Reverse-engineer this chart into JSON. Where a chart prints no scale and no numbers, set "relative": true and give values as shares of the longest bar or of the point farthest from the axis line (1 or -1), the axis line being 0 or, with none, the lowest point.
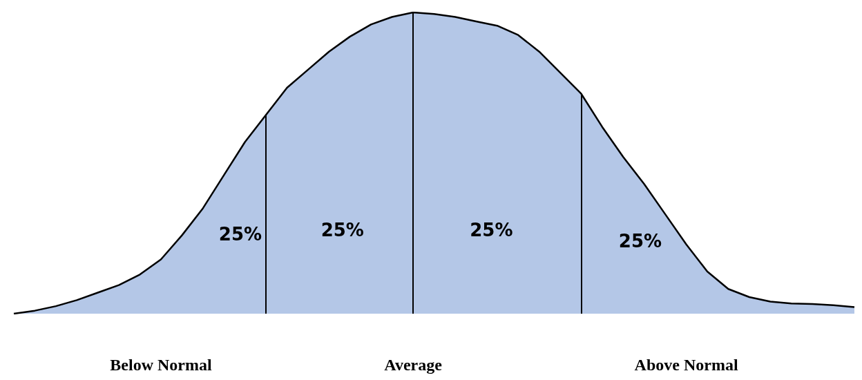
{
  "chart_data": {
    "type": "area",
    "relative": true,
    "categories": [
      null,
      null,
      null,
      null,
      null,
      null,
      null,
      "Below Normal",
      null,
      null,
      null,
      null,
      null,
      null,
      null,
      null,
      null,
      null,
      null,
      "Average",
      null,
      null,
      null,
      null,
      null,
      null,
      null,
      null,
      null,
      null,
      null,
      null,
      "Above Normal",
      null,
      null,
      null,
      null,
      null,
      null,
      null,
      null
    ],
    "series": [
      {
        "color": "#b4c7e7",
        "values": [
          0,
          0.01,
          0.025,
          0.045,
          0.07,
          0.095,
          0.13,
          0.18,
          0.26,
          0.35,
          0.46,
          0.57,
          0.66,
          0.75,
          0.81,
          0.87,
          0.92,
          0.96,
          0.985,
          1,
          0.995,
          0.985,
          0.97,
          0.956,
          0.925,
          0.87,
          0.8,
          0.73,
          0.62,
          0.52,
          0.43,
          0.33,
          0.23,
          0.14,
          0.082,
          0.055,
          0.04,
          0.034,
          0.032,
          0.028,
          0.022
        ]
      }
    ],
    "annotations": [
      "25%",
      "25%",
      "25%",
      "25%"
    ]
  }
}
